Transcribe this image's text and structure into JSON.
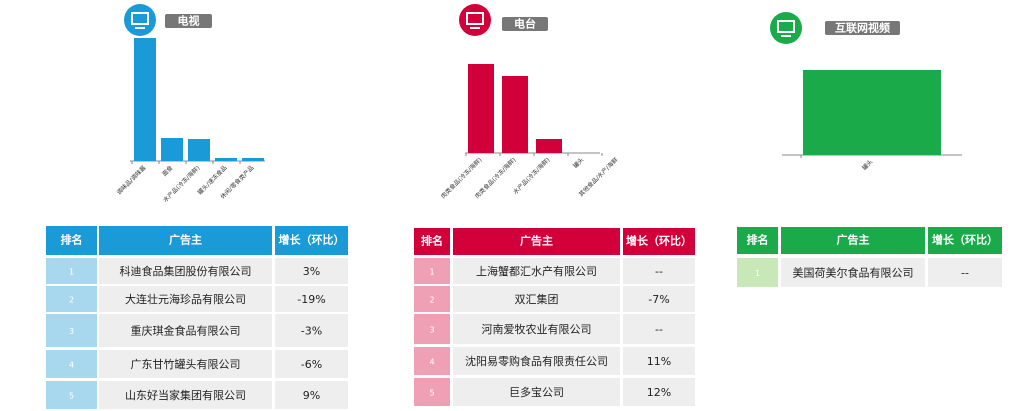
{
  "chart_data": [
    {
      "type": "bar",
      "title": "电视",
      "color": "#1a9ad6",
      "categories": [
        "调味品/调味酱",
        "面食",
        "水产品(冷冻/海鲜)",
        "罐头/速冻食品",
        "休闲/零食类产品"
      ],
      "values": [
        123,
        23,
        22,
        3,
        3
      ],
      "table": {
        "header": [
          "排名",
          "广告主",
          "增长（环比）"
        ],
        "rows": [
          [
            "1",
            "科迪食品集团股份有限公司",
            "3%"
          ],
          [
            "2",
            "大连壮元海珍品有限公司",
            "-19%"
          ],
          [
            "3",
            "重庆琪金食品有限公司",
            "-3%"
          ],
          [
            "4",
            "广东甘竹罐头有限公司",
            "-6%"
          ],
          [
            "5",
            "山东好当家集团有限公司",
            "9%"
          ]
        ]
      }
    },
    {
      "type": "bar",
      "title": "电台",
      "color": "#d2003a",
      "categories": [
        "肉类食品(冷冻/海鲜)",
        "肉类食品(冷冻/海鲜)",
        "水产品(冷冻/海鲜)",
        "罐头",
        "其他食品/水产/海鲜"
      ],
      "values": [
        89,
        77,
        14,
        0,
        0
      ],
      "table": {
        "header": [
          "排名",
          "广告主",
          "增长（环比）"
        ],
        "rows": [
          [
            "1",
            "上海蟹都汇水产有限公司",
            "--"
          ],
          [
            "2",
            "双汇集团",
            "-7%"
          ],
          [
            "3",
            "河南爱牧农业有限公司",
            "--"
          ],
          [
            "4",
            "沈阳易零购食品有限责任公司",
            "11%"
          ],
          [
            "5",
            "巨多宝公司",
            "12%"
          ]
        ]
      }
    },
    {
      "type": "bar",
      "title": "互联网视频",
      "color": "#1aaa4a",
      "categories": [
        "罐头"
      ],
      "values": [
        85
      ],
      "table": {
        "header": [
          "排名",
          "广告主",
          "增长（环比）"
        ],
        "rows": [
          [
            "1",
            "美国荷美尔食品有限公司",
            "--"
          ]
        ]
      }
    }
  ]
}
